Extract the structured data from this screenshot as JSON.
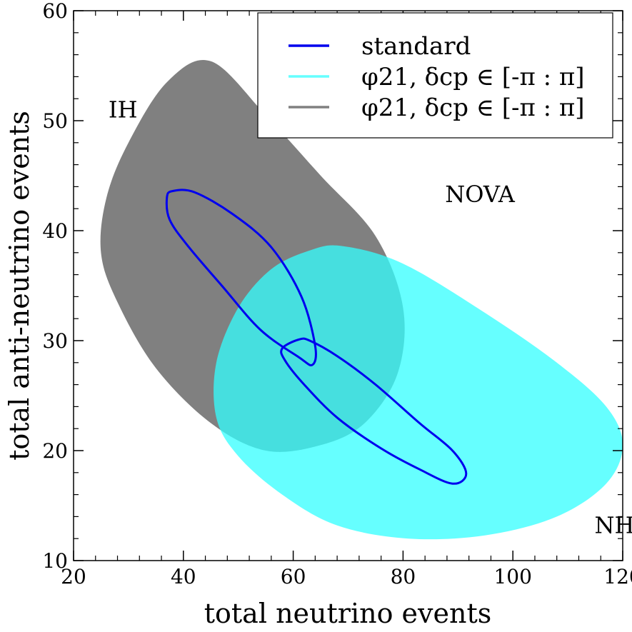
{
  "chart_data": {
    "type": "area",
    "xlabel": "total neutrino events",
    "ylabel": "total anti-neutrino events",
    "xlim": [
      20,
      120
    ],
    "ylim": [
      10,
      60
    ],
    "xticks": [
      20,
      40,
      60,
      80,
      100,
      120
    ],
    "yticks": [
      10,
      20,
      30,
      40,
      50,
      60
    ],
    "grid": false,
    "legend": {
      "placement": "top-right",
      "entries": [
        {
          "label": "standard",
          "color": "#0000ee",
          "style": "line"
        },
        {
          "label": "φ21, δcp ∈ [-π : π]",
          "color": "#66ffff",
          "style": "line"
        },
        {
          "label": "φ21, δcp ∈ [-π : π]",
          "color": "#808080",
          "style": "line"
        }
      ]
    },
    "annotations": [
      {
        "text": "IH",
        "x": 29,
        "y": 51
      },
      {
        "text": "NOVA",
        "x": 94,
        "y": 43.3
      },
      {
        "text": "NH",
        "x": 118.5,
        "y": 13.2
      }
    ],
    "series": [
      {
        "kind": "filled-region",
        "color": "#808080",
        "outline": [
          [
            45,
            55.4
          ],
          [
            55,
            50.5
          ],
          [
            65,
            45
          ],
          [
            75,
            39.5
          ],
          [
            80,
            33
          ],
          [
            79,
            27
          ],
          [
            73,
            22.5
          ],
          [
            65,
            20.5
          ],
          [
            55,
            20
          ],
          [
            45,
            22.5
          ],
          [
            35,
            27.5
          ],
          [
            28,
            33.5
          ],
          [
            25,
            38
          ],
          [
            26,
            43
          ],
          [
            30,
            48
          ],
          [
            37,
            53.5
          ],
          [
            45,
            55.4
          ]
        ]
      },
      {
        "kind": "filled-region",
        "color": "#33ffff",
        "opacity": 0.75,
        "outline": [
          [
            69,
            38.6
          ],
          [
            80,
            37
          ],
          [
            95,
            32.5
          ],
          [
            108,
            28
          ],
          [
            117,
            24
          ],
          [
            120,
            20.5
          ],
          [
            117,
            17
          ],
          [
            108,
            14
          ],
          [
            95,
            12.3
          ],
          [
            81,
            12
          ],
          [
            68,
            13.2
          ],
          [
            58,
            16
          ],
          [
            50,
            19.5
          ],
          [
            46,
            23
          ],
          [
            46,
            28
          ],
          [
            50,
            33
          ],
          [
            56,
            36.5
          ],
          [
            63,
            38.2
          ],
          [
            69,
            38.6
          ]
        ]
      },
      {
        "kind": "closed-curve",
        "color": "#0000ee",
        "points": [
          [
            38,
            43.6
          ],
          [
            37,
            43
          ],
          [
            37.5,
            41
          ],
          [
            41,
            38.5
          ],
          [
            47,
            35
          ],
          [
            54,
            31
          ],
          [
            61,
            28.5
          ],
          [
            63.5,
            27.8
          ],
          [
            64,
            29.5
          ],
          [
            61.5,
            34
          ],
          [
            56,
            38.5
          ],
          [
            49,
            41.5
          ],
          [
            42,
            43.5
          ],
          [
            38,
            43.6
          ]
        ]
      },
      {
        "kind": "closed-curve",
        "color": "#0000ee",
        "points": [
          [
            61,
            30.1
          ],
          [
            58,
            29.3
          ],
          [
            58.5,
            28.2
          ],
          [
            62,
            26
          ],
          [
            68,
            23
          ],
          [
            76,
            20.2
          ],
          [
            83,
            18.3
          ],
          [
            89,
            17
          ],
          [
            91.5,
            17.9
          ],
          [
            89,
            20
          ],
          [
            83,
            22.5
          ],
          [
            75,
            26
          ],
          [
            68,
            28.6
          ],
          [
            63,
            30
          ],
          [
            61,
            30.1
          ]
        ]
      }
    ]
  }
}
